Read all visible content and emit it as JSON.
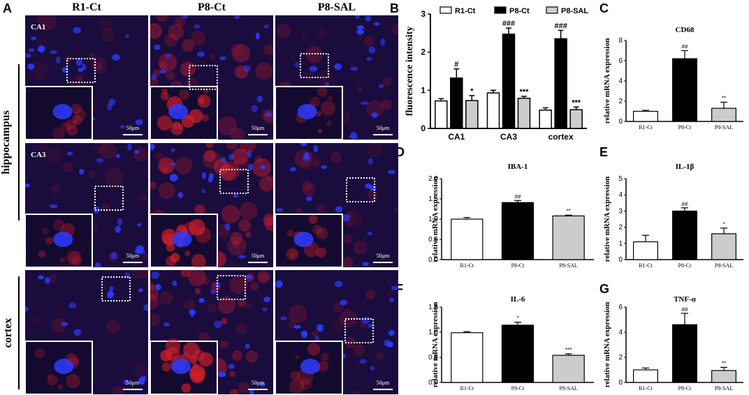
{
  "panel_letters": {
    "a": "A",
    "b": "B",
    "c": "C",
    "d": "D",
    "e": "E",
    "f": "F",
    "g": "G"
  },
  "micrograph": {
    "columns": [
      "R1-Ct",
      "P8-Ct",
      "P8-SAL"
    ],
    "row_labels": {
      "hippocampus": "hippocampus",
      "cortex": "cortex"
    },
    "region_labels": {
      "ca1": "CA1",
      "ca3": "CA3"
    },
    "scale_bar": "50μm",
    "colors": {
      "background": "#1a0c3c",
      "nuclei": "#2b3cff",
      "stain": "#e0202a",
      "dashbox": "#ffffff"
    }
  },
  "chart_data": [
    {
      "id": "B",
      "type": "bar",
      "ylabel": "fluorescence intensity",
      "categories": [
        "CA1",
        "CA3",
        "cortex"
      ],
      "ylim": [
        0,
        3
      ],
      "yticks": [
        "0",
        "1",
        "2",
        "3"
      ],
      "series": [
        {
          "name": "R1-Ct",
          "color": "#ffffff",
          "values": [
            0.72,
            0.93,
            0.48
          ],
          "err": [
            0.06,
            0.07,
            0.06
          ],
          "sig": [
            "",
            "",
            ""
          ]
        },
        {
          "name": "P8-Ct",
          "color": "#000000",
          "values": [
            1.32,
            2.47,
            2.35
          ],
          "err": [
            0.24,
            0.16,
            0.22
          ],
          "sig": [
            "#",
            "###",
            "###"
          ]
        },
        {
          "name": "P8-SAL",
          "color": "#cccccc",
          "values": [
            0.73,
            0.79,
            0.49
          ],
          "err": [
            0.13,
            0.05,
            0.07
          ],
          "sig": [
            "*",
            "***",
            "***"
          ]
        }
      ]
    },
    {
      "id": "C",
      "type": "bar",
      "title": "CD68",
      "ylabel": "relative mRNA expression",
      "categories": [
        "R1-Ct",
        "P8-Ct",
        "P8-SAL"
      ],
      "values": [
        1.0,
        6.2,
        1.3
      ],
      "err": [
        0.1,
        0.8,
        0.6
      ],
      "sig": [
        "",
        "##",
        "**"
      ],
      "colors": [
        "#ffffff",
        "#000000",
        "#cccccc"
      ],
      "ylim": [
        0,
        8
      ],
      "yticks": [
        "0",
        "2",
        "4",
        "6",
        "8"
      ]
    },
    {
      "id": "D",
      "type": "bar",
      "title": "IBA-1",
      "ylabel": "relative mRNA expression",
      "categories": [
        "R1-Ct",
        "P8-Ct",
        "P8-SAL"
      ],
      "values": [
        1.0,
        1.41,
        1.08
      ],
      "err": [
        0.04,
        0.05,
        0.02
      ],
      "sig": [
        "",
        "##",
        "**"
      ],
      "colors": [
        "#ffffff",
        "#000000",
        "#cccccc"
      ],
      "ylim": [
        0,
        2.0
      ],
      "yticks": [
        "0.0",
        "0.5",
        "1.0",
        "1.5",
        "2.0"
      ]
    },
    {
      "id": "E",
      "type": "bar",
      "title": "IL-1β",
      "ylabel": "relative mRNA expression",
      "categories": [
        "R1-Ct",
        "P8-Ct",
        "P8-SAL"
      ],
      "values": [
        1.1,
        3.0,
        1.6
      ],
      "err": [
        0.4,
        0.2,
        0.35
      ],
      "sig": [
        "",
        "##",
        "*"
      ],
      "colors": [
        "#ffffff",
        "#000000",
        "#cccccc"
      ],
      "ylim": [
        0,
        5
      ],
      "yticks": [
        "0",
        "1",
        "2",
        "3",
        "4",
        "5"
      ]
    },
    {
      "id": "F",
      "type": "bar",
      "title": "IL-6",
      "ylabel": "relative mRNA expression",
      "categories": [
        "R1-Ct",
        "P8-Ct",
        "P8-SAL"
      ],
      "values": [
        0.99,
        1.14,
        0.54
      ],
      "err": [
        0.02,
        0.06,
        0.03
      ],
      "sig": [
        "",
        "*",
        "***"
      ],
      "colors": [
        "#ffffff",
        "#000000",
        "#cccccc"
      ],
      "ylim": [
        0,
        1.5
      ],
      "yticks": [
        "0.0",
        "0.5",
        "1.0",
        "1.5"
      ]
    },
    {
      "id": "G",
      "type": "bar",
      "title": "TNF-α",
      "ylabel": "relative mRNA expression",
      "categories": [
        "R1-Ct",
        "P8-Ct",
        "P8-SAL"
      ],
      "values": [
        1.0,
        4.6,
        0.95
      ],
      "err": [
        0.15,
        0.9,
        0.25
      ],
      "sig": [
        "",
        "##",
        "**"
      ],
      "colors": [
        "#ffffff",
        "#000000",
        "#cccccc"
      ],
      "ylim": [
        0,
        6
      ],
      "yticks": [
        "0",
        "2",
        "4",
        "6"
      ]
    }
  ]
}
